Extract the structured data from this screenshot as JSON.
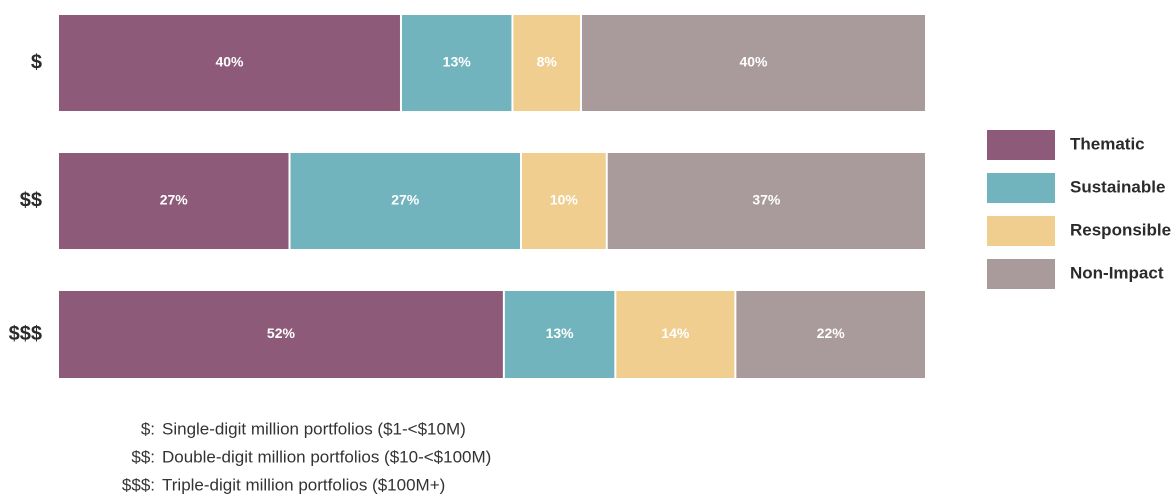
{
  "chart_data": {
    "type": "stacked-bar-horizontal",
    "categories": [
      "$",
      "$$",
      "$$$"
    ],
    "series": [
      {
        "name": "Thematic",
        "color": "#8e5a79",
        "values": [
          40,
          27,
          52
        ],
        "value_labels": [
          "40%",
          "27%",
          "52%"
        ]
      },
      {
        "name": "Sustainable",
        "color": "#72b4bd",
        "values": [
          13,
          27,
          13
        ],
        "value_labels": [
          "13%",
          "27%",
          "13%"
        ]
      },
      {
        "name": "Responsible",
        "color": "#efce8f",
        "values": [
          8,
          10,
          14
        ],
        "value_labels": [
          "8%",
          "10%",
          "14%"
        ]
      },
      {
        "name": "Non-Impact",
        "color": "#a99a9c",
        "values": [
          40,
          37,
          22
        ],
        "value_labels": [
          "40%",
          "37%",
          "22%"
        ]
      }
    ],
    "notes": [
      {
        "key": "$:",
        "text": "Single-digit million portfolios ($1-<$10M)"
      },
      {
        "key": "$$:",
        "text": "Double-digit million portfolios ($10-<$100M)"
      },
      {
        "key": "$$$:",
        "text": "Triple-digit million portfolios ($100M+)"
      }
    ]
  }
}
